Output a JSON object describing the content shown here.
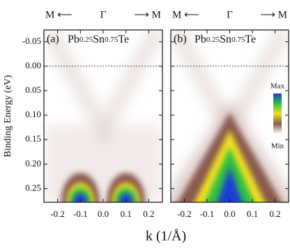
{
  "chart_data": [
    {
      "type": "image",
      "panel_label": "(a)",
      "sample": [
        "Pb",
        "0.25",
        "Sn",
        "0.75",
        "Te"
      ],
      "direction_labels": [
        "M ⟵",
        "Γ",
        "⟶ M"
      ],
      "xlabel": "k (1/Å)",
      "ylabel": "Binding Energy (eV)",
      "xlim": [
        -0.26,
        0.26
      ],
      "xticks": [
        -0.2,
        -0.1,
        {
          "value": 0,
          "label": "0.0"
        },
        0.1,
        0.2
      ],
      "ylim": [
        -0.074,
        0.278
      ],
      "y_inverted": true,
      "ytick_labels": true,
      "yticks": [
        -0.05,
        {
          "value": 0,
          "label": "0.00"
        },
        0.05,
        {
          "value": 0.1,
          "label": "0.10"
        },
        0.15,
        {
          "value": 0.2,
          "label": "0.20"
        },
        0.25
      ],
      "reference_line": 0
    },
    {
      "type": "image",
      "panel_label": "(b)",
      "sample": [
        "Pb",
        "0.25",
        "Sn",
        "0.75",
        "Te"
      ],
      "direction_labels": [
        "M ⟵",
        "Γ",
        "⟶ M"
      ],
      "xlim": [
        -0.26,
        0.26
      ],
      "xticks": [
        -0.2,
        -0.1,
        {
          "value": 0,
          "label": "0.0"
        },
        0.1,
        0.2
      ],
      "ylim": [
        -0.074,
        0.278
      ],
      "y_inverted": true,
      "ytick_labels": false,
      "yticks": [
        -0.05,
        {
          "value": 0,
          "label": "0.00"
        },
        0.05,
        {
          "value": 0.1,
          "label": "0.10"
        },
        0.15,
        {
          "value": 0.2,
          "label": "0.20"
        },
        0.25
      ],
      "reference_line": 0,
      "colorbar": {
        "labels": [
          "Max",
          "Min"
        ],
        "colors": [
          "#1e3cd8",
          "#30c040",
          "#f0e020",
          "#8a5a50",
          "#ffffff"
        ]
      }
    }
  ]
}
